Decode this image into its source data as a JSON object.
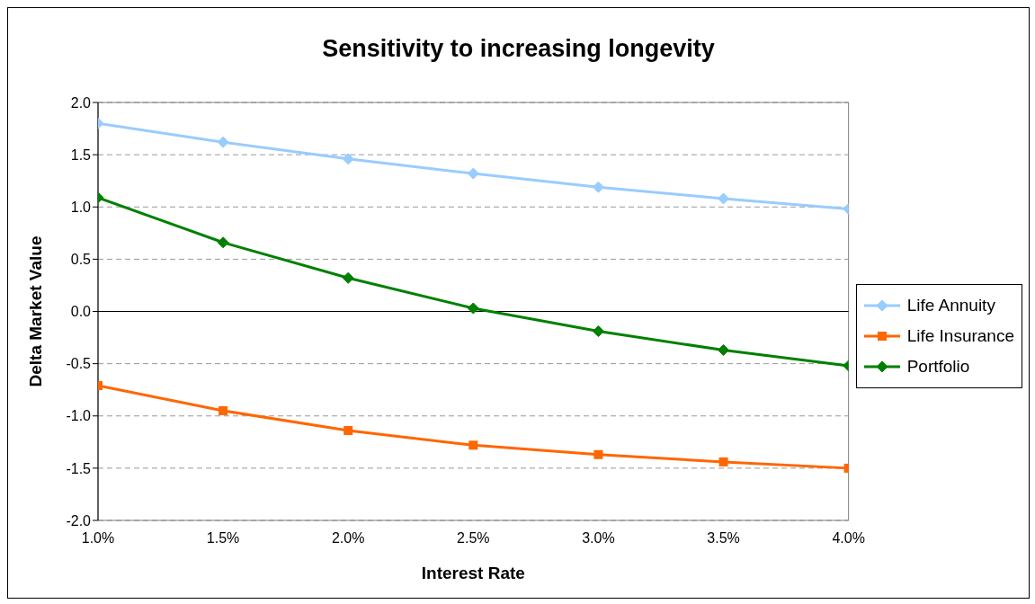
{
  "chart_data": {
    "type": "line",
    "title": "Sensitivity to increasing longevity",
    "xlabel": "Interest Rate",
    "ylabel": "Delta Market Value",
    "x": [
      1.0,
      1.5,
      2.0,
      2.5,
      3.0,
      3.5,
      4.0
    ],
    "series": [
      {
        "name": "Life Annuity",
        "color": "#99ccff",
        "marker": "diamond",
        "values": [
          1.8,
          1.62,
          1.46,
          1.32,
          1.19,
          1.08,
          0.98
        ]
      },
      {
        "name": "Life Insurance",
        "color": "#ff6600",
        "marker": "square",
        "values": [
          -0.71,
          -0.95,
          -1.14,
          -1.28,
          -1.37,
          -1.44,
          -1.5
        ]
      },
      {
        "name": "Portfolio",
        "color": "#008000",
        "marker": "diamond",
        "values": [
          1.09,
          0.66,
          0.32,
          0.03,
          -0.19,
          -0.37,
          -0.52
        ]
      }
    ],
    "xlim": [
      1.0,
      4.0
    ],
    "xticks": [
      {
        "value": 1.0,
        "label": "1.0%"
      },
      {
        "value": 1.5,
        "label": "1.5%"
      },
      {
        "value": 2.0,
        "label": "2.0%"
      },
      {
        "value": 2.5,
        "label": "2.5%"
      },
      {
        "value": 3.0,
        "label": "3.0%"
      },
      {
        "value": 3.5,
        "label": "3.5%"
      },
      {
        "value": 4.0,
        "label": "4.0%"
      }
    ],
    "ylim": [
      -2.0,
      2.0
    ],
    "yticks": [
      {
        "value": -2.0,
        "label": "-2.0"
      },
      {
        "value": -1.5,
        "label": "-1.5"
      },
      {
        "value": -1.0,
        "label": "-1.0"
      },
      {
        "value": -0.5,
        "label": "-0.5"
      },
      {
        "value": 0,
        "label": "0.0"
      },
      {
        "value": 0.5,
        "label": "0.5"
      },
      {
        "value": 1.0,
        "label": "1.0"
      },
      {
        "value": 1.5,
        "label": "1.5"
      },
      {
        "value": 2.0,
        "label": "2.0"
      }
    ],
    "grid": "y",
    "legend": "right",
    "line_style": "solid"
  }
}
